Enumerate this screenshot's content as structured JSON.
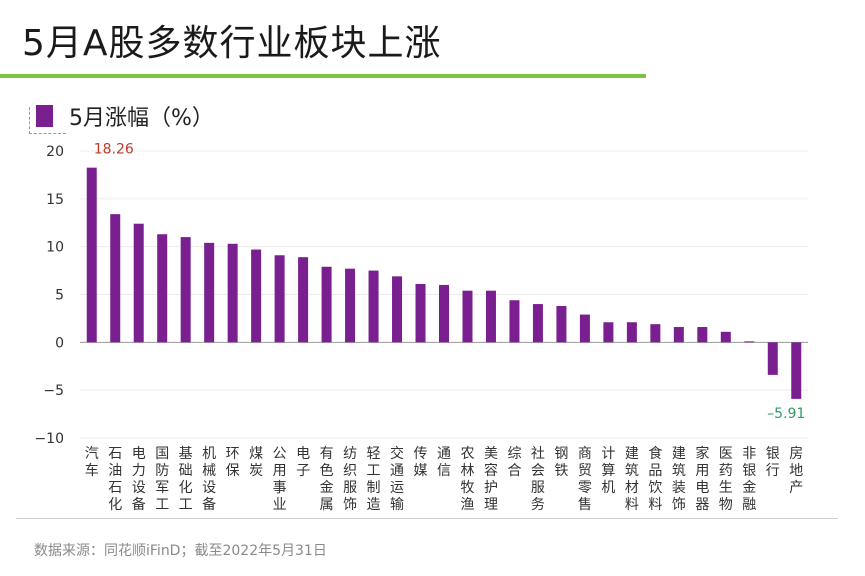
{
  "title": "5月A股多数行业板块上涨",
  "legend_label": "5月涨幅（%）",
  "source": "数据来源：同花顺iFinD；截至2022年5月31日",
  "colors": {
    "bar": "#7a1f8f",
    "accent_line": "#7cc242",
    "max_label": "#c0392b",
    "min_label": "#2e9e5e"
  },
  "chart_data": {
    "type": "bar",
    "categories": [
      "汽车",
      "石油石化",
      "电力设备",
      "国防军工",
      "基础化工",
      "机械设备",
      "环保",
      "煤炭",
      "公用事业",
      "电子",
      "有色金属",
      "纺织服饰",
      "轻工制造",
      "交通运输",
      "传媒",
      "通信",
      "农林牧渔",
      "美容护理",
      "综合",
      "社会服务",
      "钢铁",
      "商贸零售",
      "计算机",
      "建筑材料",
      "食品饮料",
      "建筑装饰",
      "家用电器",
      "医药生物",
      "非银金融",
      "银行",
      "房地产"
    ],
    "values": [
      18.26,
      13.4,
      12.4,
      11.3,
      11.0,
      10.4,
      10.3,
      9.7,
      9.1,
      8.9,
      7.9,
      7.7,
      7.5,
      6.9,
      6.1,
      6.0,
      5.4,
      5.4,
      4.4,
      4.0,
      3.8,
      2.9,
      2.1,
      2.1,
      1.9,
      1.6,
      1.6,
      1.1,
      0.1,
      -3.4,
      -5.91
    ],
    "ylim": [
      -10,
      20
    ],
    "yticks": [
      20,
      15,
      10,
      5,
      0,
      -5,
      -10
    ],
    "data_labels": [
      {
        "index": 0,
        "text": "18.26"
      },
      {
        "index": 30,
        "text": "–5.91"
      }
    ],
    "grid": true
  }
}
